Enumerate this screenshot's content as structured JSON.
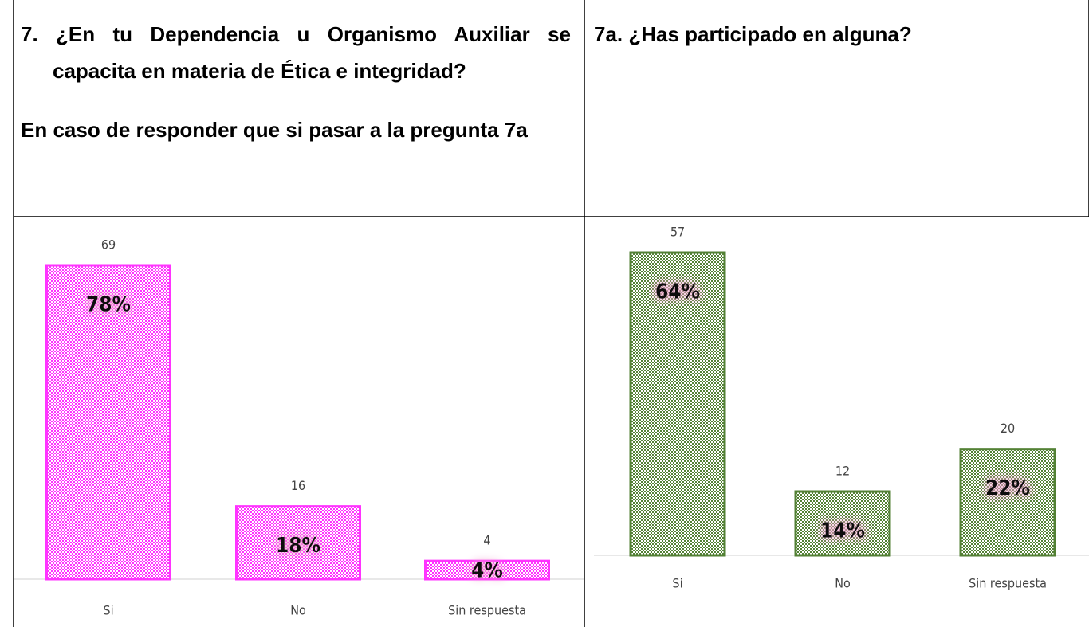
{
  "header": {
    "left": {
      "question": "7. ¿En tu Dependencia u Organismo Auxiliar se capacita en materia de Ética e integridad?",
      "note": "En caso de responder que si pasar a la pregunta 7a"
    },
    "right": {
      "question": "7a. ¿Has participado en alguna?"
    }
  },
  "chart_data": [
    {
      "type": "bar",
      "categories": [
        "Si",
        "No",
        "Sin respuesta"
      ],
      "values": [
        69,
        16,
        4
      ],
      "shares": [
        78,
        18,
        4
      ],
      "share_labels": [
        "78%",
        "18%",
        "4%"
      ],
      "color": "#ff33ff",
      "ylim": [
        0,
        69
      ]
    },
    {
      "type": "bar",
      "categories": [
        "Si",
        "No",
        "Sin respuesta"
      ],
      "values": [
        57,
        12,
        20
      ],
      "shares": [
        64,
        14,
        22
      ],
      "share_labels": [
        "64%",
        "14%",
        "22%"
      ],
      "color": "#538135",
      "ylim": [
        0,
        57
      ]
    }
  ]
}
